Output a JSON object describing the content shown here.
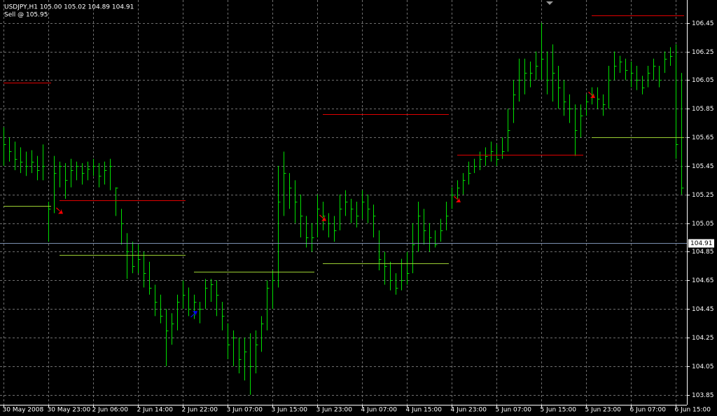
{
  "chart_data": {
    "type": "ohlc",
    "title": "USDJPY,H1  105.00 105.02 104.89 104.91",
    "subtitle": "Sell @ 105.95",
    "color": "#00e000",
    "grid": true,
    "categories": [
      "30 May 2008",
      null,
      null,
      null,
      null,
      null,
      null,
      null,
      "30 May 23:00",
      null,
      null,
      null,
      null,
      null,
      null,
      null,
      "2 Jun 06:00",
      null,
      null,
      null,
      null,
      null,
      null,
      null,
      "2 Jun 14:00",
      null,
      null,
      null,
      null,
      null,
      null,
      null,
      "2 Jun 22:00",
      null,
      null,
      null,
      null,
      null,
      null,
      null,
      "3 Jun 07:00",
      null,
      null,
      null,
      null,
      null,
      null,
      null,
      "3 Jun 15:00",
      null,
      null,
      null,
      null,
      null,
      null,
      null,
      "3 Jun 23:00",
      null,
      null,
      null,
      null,
      null,
      null,
      null,
      "4 Jun 07:00",
      null,
      null,
      null,
      null,
      null,
      null,
      null,
      "4 Jun 15:00",
      null,
      null,
      null,
      null,
      null,
      null,
      null,
      "4 Jun 23:00",
      null,
      null,
      null,
      null,
      null,
      null,
      null,
      "5 Jun 07:00",
      null,
      null,
      null,
      null,
      null,
      null,
      null,
      "5 Jun 15:00",
      null,
      null,
      null,
      null,
      null,
      null,
      null,
      "5 Jun 23:00",
      null,
      null,
      null,
      null,
      null,
      null,
      null,
      "6 Jun 07:00",
      null,
      null,
      null,
      null,
      null,
      null,
      null,
      "6 Jun 15:00",
      null
    ],
    "high": [
      105.72,
      105.65,
      105.62,
      105.58,
      105.55,
      105.56,
      105.52,
      105.6,
      105.2,
      105.52,
      105.48,
      105.47,
      105.5,
      105.48,
      105.47,
      105.48,
      105.5,
      105.47,
      105.48,
      105.5,
      105.3,
      105.15,
      104.98,
      104.92,
      104.9,
      104.85,
      104.78,
      104.62,
      104.55,
      104.45,
      104.42,
      104.55,
      104.65,
      104.6,
      104.55,
      104.5,
      104.66,
      104.66,
      104.65,
      104.5,
      104.35,
      104.3,
      104.25,
      104.25,
      104.28,
      104.3,
      104.4,
      104.65,
      104.72,
      105.45,
      105.55,
      105.4,
      105.35,
      105.25,
      105.1,
      105.05,
      105.25,
      105.2,
      105.12,
      105.1,
      105.25,
      105.28,
      105.22,
      105.2,
      105.28,
      105.25,
      105.18,
      105.0,
      104.85,
      104.78,
      104.7,
      104.8,
      104.85,
      105.05,
      105.2,
      105.15,
      105.05,
      105.0,
      105.08,
      105.2,
      105.3,
      105.35,
      105.4,
      105.48,
      105.5,
      105.55,
      105.58,
      105.62,
      105.6,
      105.65,
      105.85,
      106.05,
      106.2,
      106.2,
      106.18,
      106.25,
      106.45,
      106.25,
      106.3,
      106.15,
      106.05,
      105.95,
      105.88,
      105.88,
      105.95,
      106.0,
      106.0,
      105.95,
      106.15,
      106.25,
      106.22,
      106.2,
      106.18,
      106.15,
      106.08,
      106.15,
      106.2,
      106.15,
      106.25,
      106.28,
      106.3,
      106.1
    ],
    "low": [
      105.45,
      105.48,
      105.42,
      105.4,
      105.38,
      105.4,
      105.35,
      105.35,
      104.92,
      105.12,
      105.3,
      105.22,
      105.3,
      105.35,
      105.32,
      105.35,
      105.38,
      105.3,
      105.32,
      105.28,
      105.1,
      104.9,
      104.66,
      104.7,
      104.7,
      104.6,
      104.55,
      104.4,
      104.35,
      104.05,
      104.2,
      104.3,
      104.45,
      104.4,
      104.38,
      104.35,
      104.45,
      104.5,
      104.4,
      104.3,
      104.1,
      104.05,
      104.0,
      103.95,
      103.85,
      104.0,
      104.15,
      104.3,
      104.45,
      104.6,
      105.1,
      105.15,
      105.05,
      104.95,
      104.88,
      104.85,
      104.95,
      105.0,
      104.95,
      104.92,
      105.0,
      105.1,
      105.05,
      105.02,
      105.08,
      105.05,
      104.95,
      104.72,
      104.62,
      104.58,
      104.55,
      104.58,
      104.62,
      104.7,
      104.85,
      104.9,
      104.85,
      104.88,
      104.92,
      105.0,
      105.15,
      105.22,
      105.25,
      105.32,
      105.4,
      105.42,
      105.45,
      105.48,
      105.45,
      105.5,
      105.55,
      105.75,
      105.9,
      105.95,
      106.0,
      106.05,
      106.05,
      105.95,
      105.9,
      105.85,
      105.8,
      105.75,
      105.52,
      105.65,
      105.8,
      105.88,
      105.85,
      105.8,
      105.85,
      106.05,
      106.1,
      106.05,
      106.0,
      105.98,
      105.95,
      106.0,
      106.05,
      106.0,
      106.1,
      106.15,
      105.5,
      105.25
    ],
    "close": [
      105.6,
      105.55,
      105.5,
      105.48,
      105.45,
      105.48,
      105.42,
      105.45,
      105.15,
      105.4,
      105.45,
      105.35,
      105.42,
      105.45,
      105.4,
      105.43,
      105.45,
      105.38,
      105.42,
      105.45,
      105.3,
      105.05,
      104.85,
      104.75,
      104.8,
      104.7,
      104.6,
      104.5,
      104.4,
      104.3,
      104.35,
      104.5,
      104.55,
      104.45,
      104.5,
      104.45,
      104.6,
      104.62,
      104.55,
      104.4,
      104.2,
      104.25,
      104.1,
      104.15,
      104.05,
      104.2,
      104.35,
      104.6,
      104.65,
      105.2,
      105.4,
      105.3,
      105.2,
      105.1,
      104.95,
      104.95,
      105.15,
      105.1,
      105.05,
      105.0,
      105.15,
      105.2,
      105.15,
      105.1,
      105.2,
      105.15,
      105.1,
      104.8,
      104.75,
      104.65,
      104.6,
      104.65,
      104.7,
      104.9,
      105.1,
      105.0,
      104.95,
      104.9,
      105.0,
      105.1,
      105.25,
      105.3,
      105.35,
      105.4,
      105.45,
      105.5,
      105.52,
      105.55,
      105.5,
      105.55,
      105.7,
      105.95,
      106.05,
      106.1,
      106.1,
      106.15,
      106.2,
      106.05,
      106.1,
      106.0,
      105.9,
      105.85,
      105.7,
      105.8,
      105.9,
      105.95,
      105.92,
      105.88,
      106.05,
      106.15,
      106.18,
      106.12,
      106.1,
      106.05,
      106.0,
      106.1,
      106.15,
      106.05,
      106.2,
      106.22,
      105.6,
      105.3
    ],
    "ylim": [
      103.78,
      106.61
    ],
    "yticks": [
      103.85,
      104.05,
      104.25,
      104.45,
      104.65,
      104.85,
      105.05,
      105.25,
      105.45,
      105.65,
      105.85,
      106.05,
      106.25,
      106.45
    ],
    "current_price": 104.91,
    "levels": [
      {
        "start": 0,
        "end": 8,
        "value": 106.03,
        "color": "#e00000"
      },
      {
        "start": 0,
        "end": 8,
        "value": 105.17,
        "color": "#9acd32"
      },
      {
        "start": 10,
        "end": 32,
        "value": 105.21,
        "color": "#e00000"
      },
      {
        "start": 10,
        "end": 32,
        "value": 104.83,
        "color": "#9acd32"
      },
      {
        "start": 34,
        "end": 55,
        "value": 104.71,
        "color": "#9acd32"
      },
      {
        "start": 57,
        "end": 79,
        "value": 105.81,
        "color": "#e00000"
      },
      {
        "start": 57,
        "end": 79,
        "value": 104.77,
        "color": "#9acd32"
      },
      {
        "start": 81,
        "end": 103,
        "value": 105.53,
        "color": "#e00000"
      },
      {
        "start": 81,
        "end": 103,
        "value": 104.91,
        "color": "#9acd32"
      },
      {
        "start": 105,
        "end": 121,
        "value": 106.5,
        "color": "#e00000"
      },
      {
        "start": 105,
        "end": 121,
        "value": 105.65,
        "color": "#9acd32"
      }
    ],
    "arrows": [
      {
        "index": 10,
        "value": 105.13,
        "color": "#ff0000",
        "dir": "down"
      },
      {
        "index": 34,
        "value": 104.42,
        "color": "#0000ff",
        "dir": "up"
      },
      {
        "index": 57,
        "value": 105.08,
        "color": "#ff0000",
        "dir": "down"
      },
      {
        "index": 81,
        "value": 105.21,
        "color": "#ff0000",
        "dir": "down"
      },
      {
        "index": 105,
        "value": 105.94,
        "color": "#ff0000",
        "dir": "down"
      }
    ]
  }
}
